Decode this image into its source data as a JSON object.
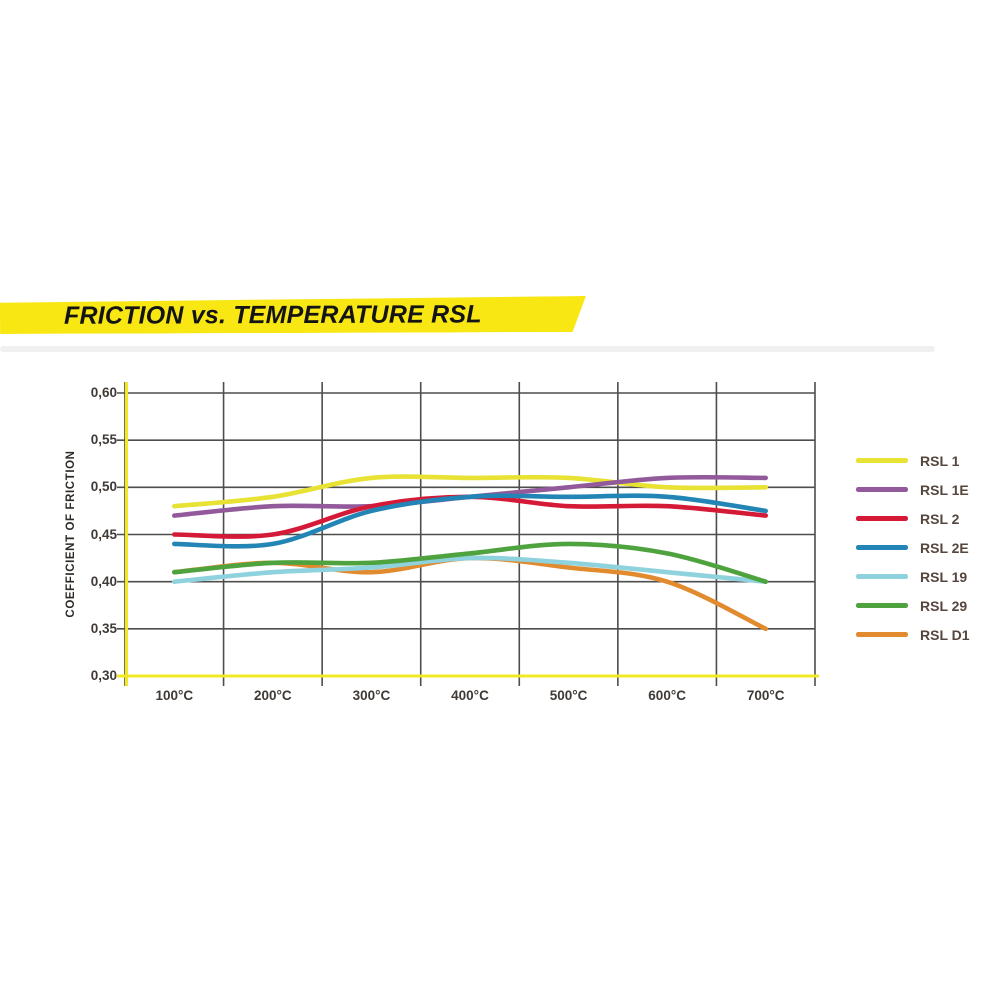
{
  "banner": {
    "title": "FRICTION vs. TEMPERATURE RSL",
    "background": "#f9e713",
    "text_color": "#141414"
  },
  "chart_data": {
    "type": "line",
    "title": "FRICTION vs. TEMPERATURE RSL",
    "xlabel": "",
    "ylabel": "COEFFICIENT OF FRICTION",
    "categories": [
      "100°C",
      "200°C",
      "300°C",
      "400°C",
      "500°C",
      "600°C",
      "700°C"
    ],
    "y_tick_labels": [
      "0,60",
      "0,55",
      "0,50",
      "0,45",
      "0,40",
      "0,35",
      "0,30"
    ],
    "ylim": [
      0.3,
      0.6
    ],
    "grid": true,
    "legend_position": "right",
    "axis_color": "#f3e824",
    "grid_color": "#4d4d4d",
    "series": [
      {
        "name": "RSL 1",
        "color": "#e7e233",
        "values": [
          0.48,
          0.49,
          0.51,
          0.51,
          0.51,
          0.5,
          0.5
        ]
      },
      {
        "name": "RSL 1E",
        "color": "#925a9b",
        "values": [
          0.47,
          0.48,
          0.48,
          0.49,
          0.5,
          0.51,
          0.51
        ]
      },
      {
        "name": "RSL 2",
        "color": "#d51a37",
        "values": [
          0.45,
          0.45,
          0.48,
          0.49,
          0.48,
          0.48,
          0.47
        ]
      },
      {
        "name": "RSL 2E",
        "color": "#2285b5",
        "values": [
          0.44,
          0.44,
          0.475,
          0.49,
          0.49,
          0.49,
          0.475
        ]
      },
      {
        "name": "RSL 19",
        "color": "#8ed2dd",
        "values": [
          0.4,
          0.41,
          0.415,
          0.425,
          0.42,
          0.41,
          0.4
        ]
      },
      {
        "name": "RSL 29",
        "color": "#4fa33f",
        "values": [
          0.41,
          0.42,
          0.42,
          0.43,
          0.44,
          0.43,
          0.4
        ]
      },
      {
        "name": "RSL D1",
        "color": "#e28a2e",
        "values": [
          0.41,
          0.42,
          0.41,
          0.425,
          0.415,
          0.4,
          0.35
        ]
      }
    ]
  }
}
